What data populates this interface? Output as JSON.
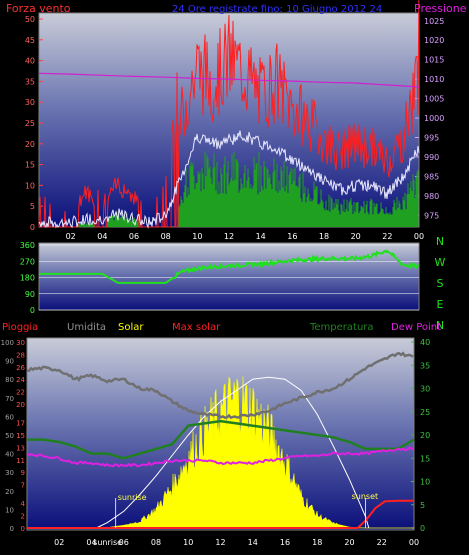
{
  "colors": {
    "wind": "#ff2020",
    "wind_avg": "#e8e8ff",
    "wind_dir_avg": "#20a020",
    "pressure": "#d020d0",
    "title": "#3030ff",
    "axis_left_top": "#ff4040",
    "axis_right_top": "#d8a0ff",
    "compass": "#20e020",
    "rain": "#ff2020",
    "humidity": "#707070",
    "solar": "#ffff00",
    "max_solar": "#ffffff",
    "temperature": "#208020",
    "dew_point": "#e020e0",
    "tick_label": "#ffffff"
  },
  "chart_data": [
    {
      "id": "wind-pressure",
      "type": "line",
      "title": "24 Ore registrate fino: 10 Giugno 2012 24",
      "left_label": "Forza vento",
      "right_label": "Pressione",
      "x_ticks": [
        "02",
        "04",
        "06",
        "08",
        "10",
        "12",
        "14",
        "16",
        "18",
        "20",
        "22",
        "00"
      ],
      "ylim_left": [
        0,
        50
      ],
      "y_ticks_left": [
        0,
        5,
        10,
        15,
        20,
        25,
        30,
        35,
        40,
        45,
        50
      ],
      "ylim_right": [
        972,
        1027
      ],
      "y_ticks_right": [
        975,
        980,
        985,
        990,
        995,
        1000,
        1005,
        1010,
        1015,
        1020,
        1025
      ],
      "series": [
        {
          "name": "Pressione",
          "x": [
            0,
            2,
            4,
            6,
            8,
            10,
            12,
            14,
            16,
            18,
            20,
            22,
            24
          ],
          "values": [
            1011.5,
            1011.3,
            1011.0,
            1010.7,
            1010.5,
            1010.2,
            1010.0,
            1009.7,
            1009.5,
            1009.2,
            1009.0,
            1008.5,
            1008.0
          ]
        },
        {
          "name": "wind-gust",
          "x": [
            0,
            1,
            2,
            3,
            4,
            5,
            6,
            7,
            8,
            9,
            10,
            11,
            12,
            13,
            14,
            15,
            16,
            17,
            18,
            19,
            20,
            21,
            22,
            23,
            24
          ],
          "values": [
            6,
            3,
            4,
            8,
            4,
            10,
            7,
            3,
            8,
            25,
            36,
            33,
            38,
            35,
            30,
            33,
            27,
            24,
            20,
            17,
            19,
            18,
            15,
            20,
            36
          ]
        },
        {
          "name": "wind-avg",
          "x": [
            0,
            1,
            2,
            3,
            4,
            5,
            6,
            7,
            8,
            9,
            10,
            11,
            12,
            13,
            14,
            15,
            16,
            17,
            18,
            19,
            20,
            21,
            22,
            23,
            24
          ],
          "values": [
            1,
            1,
            1,
            2,
            2,
            3,
            2,
            1,
            3,
            12,
            22,
            20,
            21,
            22,
            20,
            19,
            16,
            14,
            11,
            9,
            10,
            10,
            8,
            12,
            19
          ]
        },
        {
          "name": "wind-low",
          "x": [
            0,
            1,
            2,
            3,
            4,
            5,
            6,
            7,
            8,
            9,
            10,
            11,
            12,
            13,
            14,
            15,
            16,
            17,
            18,
            19,
            20,
            21,
            22,
            23,
            24
          ],
          "values": [
            0,
            0,
            0,
            1,
            1,
            3,
            2,
            0,
            2,
            9,
            14,
            13,
            13,
            13,
            13,
            12,
            11,
            9,
            6,
            5,
            5,
            5,
            4,
            6,
            12
          ]
        }
      ]
    },
    {
      "id": "wind-direction",
      "type": "line",
      "compass_labels": [
        "N",
        "W",
        "S",
        "E",
        "N"
      ],
      "x_ticks": [
        "02",
        "04",
        "06",
        "08",
        "10",
        "12",
        "14",
        "16",
        "18",
        "20",
        "22",
        "00"
      ],
      "ylim": [
        0,
        360
      ],
      "y_ticks": [
        0,
        90,
        180,
        270,
        360
      ],
      "series": [
        {
          "name": "direction",
          "x": [
            0,
            1,
            2,
            3,
            4,
            5,
            6,
            7,
            8,
            9,
            10,
            11,
            12,
            13,
            14,
            15,
            16,
            17,
            18,
            19,
            20,
            21,
            22,
            23,
            24
          ],
          "values": [
            200,
            200,
            200,
            200,
            200,
            150,
            150,
            150,
            150,
            210,
            230,
            240,
            245,
            250,
            255,
            265,
            275,
            280,
            285,
            285,
            285,
            300,
            330,
            250,
            240
          ]
        }
      ]
    },
    {
      "id": "rain-solar-temperature",
      "type": "area",
      "legend": [
        "Pioggia",
        "Umidita",
        "Solar",
        "Max solar",
        "Temperatura",
        "Dew Point"
      ],
      "x_ticks": [
        "02",
        "04",
        "sunrise",
        "06",
        "08",
        "10",
        "12",
        "14",
        "16",
        "18",
        "20",
        "22",
        "00"
      ],
      "annotations": [
        "sunrise",
        "sunset"
      ],
      "rain_ylim": [
        0,
        30
      ],
      "rain_ticks": [
        0,
        2,
        4,
        7,
        9,
        11,
        13,
        15,
        17,
        20,
        22,
        24,
        26,
        28,
        30
      ],
      "humidity_ylim": [
        0,
        100
      ],
      "humidity_ticks": [
        0,
        10,
        20,
        30,
        40,
        50,
        60,
        70,
        80,
        90,
        100
      ],
      "temp_ylim": [
        0,
        40
      ],
      "temp_ticks": [
        0,
        5,
        10,
        15,
        20,
        25,
        30,
        35,
        40
      ],
      "series": [
        {
          "name": "Umidita",
          "x": [
            0,
            1,
            2,
            3,
            4,
            5,
            6,
            7,
            8,
            9,
            10,
            11,
            12,
            13,
            14,
            15,
            16,
            17,
            18,
            19,
            20,
            21,
            22,
            23,
            24
          ],
          "values": [
            85,
            86,
            85,
            80,
            82,
            79,
            80,
            75,
            74,
            68,
            63,
            61,
            60,
            60,
            61,
            63,
            67,
            70,
            73,
            75,
            80,
            86,
            90,
            94,
            92
          ]
        },
        {
          "name": "Temperatura",
          "x": [
            0,
            1,
            2,
            3,
            4,
            5,
            6,
            7,
            8,
            9,
            10,
            11,
            12,
            13,
            14,
            15,
            16,
            17,
            18,
            19,
            20,
            21,
            22,
            23,
            24
          ],
          "values": [
            19,
            19,
            18.5,
            17.5,
            16,
            16,
            15,
            16,
            17,
            18,
            22,
            22.5,
            23,
            22.5,
            22,
            21.5,
            21,
            20.5,
            20,
            19.5,
            18.5,
            17,
            17,
            17,
            19
          ]
        },
        {
          "name": "Dew Point",
          "x": [
            0,
            1,
            2,
            3,
            4,
            5,
            6,
            7,
            8,
            9,
            10,
            11,
            12,
            13,
            14,
            15,
            16,
            17,
            18,
            19,
            20,
            21,
            22,
            23,
            24
          ],
          "values": [
            16,
            15.5,
            15,
            14,
            14,
            13.5,
            13.5,
            13.5,
            14,
            14.5,
            14.5,
            14.5,
            14,
            14,
            14,
            14.5,
            15,
            15.5,
            15.5,
            16,
            16,
            16,
            16.5,
            17,
            17
          ]
        },
        {
          "name": "Solar",
          "x": [
            0,
            4,
            5,
            6,
            7,
            8,
            9,
            10,
            11,
            12,
            13,
            14,
            15,
            16,
            17,
            18,
            19,
            20,
            21,
            24
          ],
          "values": [
            0,
            0,
            0.3,
            1.5,
            3.5,
            10,
            22,
            38,
            52,
            62,
            70,
            64,
            52,
            36,
            17,
            7,
            2.5,
            0.5,
            0,
            0
          ]
        },
        {
          "name": "Max solar",
          "x": [
            4.3,
            5,
            6,
            7,
            8,
            9,
            10,
            11,
            12,
            13,
            14,
            15,
            16,
            17,
            18,
            19,
            20,
            21,
            21.2
          ],
          "values": [
            0,
            3,
            9,
            18,
            28,
            39,
            50,
            60,
            68,
            74,
            80,
            81,
            80,
            74,
            61,
            44,
            26,
            6,
            0
          ]
        },
        {
          "name": "Pioggia",
          "x": [
            0,
            20.5,
            21,
            21.6,
            22.2,
            23,
            24
          ],
          "values": [
            0,
            0,
            1.2,
            3.2,
            4.3,
            4.4,
            4.4
          ]
        }
      ]
    }
  ]
}
